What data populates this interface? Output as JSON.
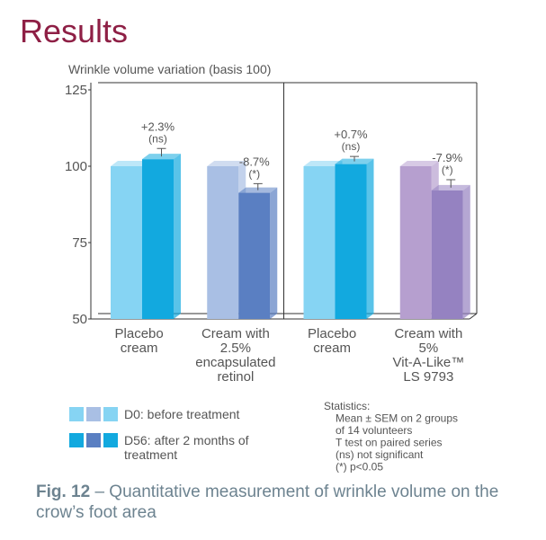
{
  "chart_data": {
    "type": "bar3d",
    "title": "Results",
    "ylabel": "Wrinkle volume variation (basis 100)",
    "categories": [
      [
        "Placebo",
        "cream"
      ],
      [
        "Cream with",
        "2.5%",
        "encapsulated",
        "retinol"
      ],
      [
        "Placebo",
        "cream"
      ],
      [
        "Cream with",
        "5%",
        "Vit-A-Like™",
        "LS 9793"
      ]
    ],
    "series": [
      {
        "name": "D0: before treatment",
        "colors": [
          "#86d4f3",
          "#a9bfe4",
          "#86d4f3",
          "#b69fcf"
        ],
        "values": [
          100,
          100,
          100,
          100
        ]
      },
      {
        "name": "D56: after 2 months of treatment",
        "colors": [
          "#12a9df",
          "#5a7fc2",
          "#12a9df",
          "#9582c1"
        ],
        "values": [
          102.3,
          91.3,
          100.7,
          92.1
        ],
        "errors": [
          3.5,
          3,
          2.5,
          3.5
        ]
      }
    ],
    "annotations": [
      [
        "+2.3%",
        "(ns)"
      ],
      [
        "-8.7%",
        "(*)"
      ],
      [
        "+0.7%",
        "(ns)"
      ],
      [
        "-7.9%",
        "(*)"
      ]
    ],
    "ylim": [
      50,
      125
    ],
    "yticks": [
      50,
      75,
      100,
      125
    ],
    "stats": [
      "Statistics:",
      "Mean ± SEM on 2 groups",
      "of 14 volunteers",
      "T test on paired series",
      "(ns) not significant",
      "(*) p<0.05"
    ],
    "caption": {
      "label": "Fig. 12",
      "text": " – Quantitative measurement of wrinkle volume on the crow’s foot area"
    }
  }
}
